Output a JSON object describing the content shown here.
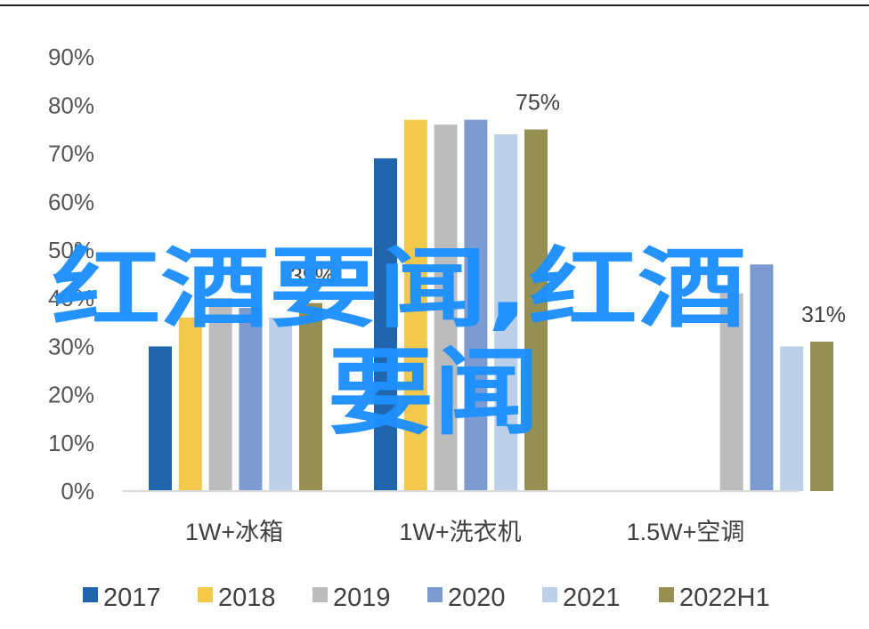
{
  "chart_data": {
    "type": "bar",
    "categories": [
      "1W+冰箱",
      "1W+洗衣机",
      "1.5W+空调"
    ],
    "series": [
      {
        "name": "2017",
        "values": [
          30,
          69,
          null
        ],
        "color": "#2166ac"
      },
      {
        "name": "2018",
        "values": [
          36,
          77,
          null
        ],
        "color": "#f2c94c"
      },
      {
        "name": "2019",
        "values": [
          40,
          76,
          41
        ],
        "color": "#bcbcbc"
      },
      {
        "name": "2020",
        "values": [
          38,
          77,
          47
        ],
        "color": "#7b9bd1"
      },
      {
        "name": "2021",
        "values": [
          36,
          74,
          30
        ],
        "color": "#bcd0ea"
      },
      {
        "name": "2022H1",
        "values": [
          39,
          75,
          31
        ],
        "color": "#958f53"
      }
    ],
    "y_ticks": [
      "0%",
      "10%",
      "20%",
      "30%",
      "40%",
      "50%",
      "60%",
      "70%",
      "80%",
      "90%"
    ],
    "ylim": [
      0,
      90
    ],
    "data_labels": [
      {
        "category": 0,
        "series": 5,
        "text": "39%"
      },
      {
        "category": 1,
        "series": 5,
        "text": "75%"
      },
      {
        "category": 2,
        "series": 5,
        "text": "31%"
      }
    ],
    "legend_position": "bottom",
    "grid": false
  },
  "watermark": {
    "line1": "红酒要闻,红酒",
    "line2": "要闻"
  }
}
